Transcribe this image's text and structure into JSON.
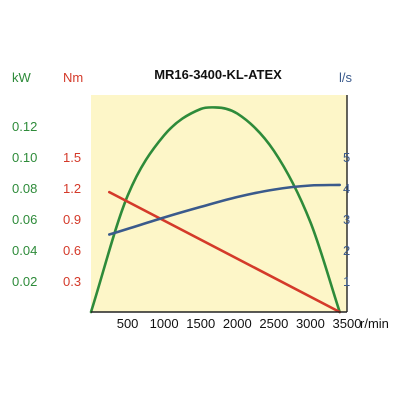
{
  "chart_data": {
    "type": "line",
    "title": "MR16-3400-KL-ATEX",
    "xlabel": "r/min",
    "xlim": [
      0,
      3500
    ],
    "x_ticks": [
      "500",
      "1000",
      "1500",
      "2000",
      "2500",
      "3000",
      "3500"
    ],
    "x_tick_values": [
      500,
      1000,
      1500,
      2000,
      2500,
      3000,
      3500
    ],
    "axes": {
      "kw": {
        "label": "kW",
        "color": "#2e8b3a",
        "ylim": [
          0,
          0.14
        ],
        "ticks": [
          "0.02",
          "0.04",
          "0.06",
          "0.08",
          "0.10",
          "0.12"
        ],
        "tick_values": [
          0.02,
          0.04,
          0.06,
          0.08,
          0.1,
          0.12
        ]
      },
      "nm": {
        "label": "Nm",
        "color": "#d43a2a",
        "ylim": [
          0,
          2.1
        ],
        "ticks": [
          "0.3",
          "0.6",
          "0.9",
          "1.2",
          "1.5"
        ],
        "tick_values": [
          0.3,
          0.6,
          0.9,
          1.2,
          1.5
        ]
      },
      "ls": {
        "label": "l/s",
        "color": "#3a5a8c",
        "ylim": [
          0,
          7
        ],
        "ticks": [
          "1",
          "2",
          "3",
          "4",
          "5"
        ],
        "tick_values": [
          1,
          2,
          3,
          4,
          5
        ]
      }
    },
    "series": [
      {
        "axis": "kw",
        "color": "#2e8b3a",
        "x": [
          0,
          500,
          1000,
          1500,
          1700,
          2000,
          2500,
          3000,
          3400
        ],
        "values": [
          0.0,
          0.075,
          0.114,
          0.131,
          0.132,
          0.128,
          0.104,
          0.058,
          0.0
        ]
      },
      {
        "axis": "nm",
        "color": "#d43a2a",
        "x": [
          250,
          3400
        ],
        "values": [
          1.16,
          0.0
        ]
      },
      {
        "axis": "ls",
        "color": "#3a5a8c",
        "x": [
          250,
          500,
          1000,
          1500,
          2000,
          2500,
          3000,
          3400
        ],
        "values": [
          2.5,
          2.68,
          3.05,
          3.39,
          3.71,
          3.95,
          4.08,
          4.1
        ]
      }
    ],
    "background": "#fdf6c8",
    "grid": false
  }
}
